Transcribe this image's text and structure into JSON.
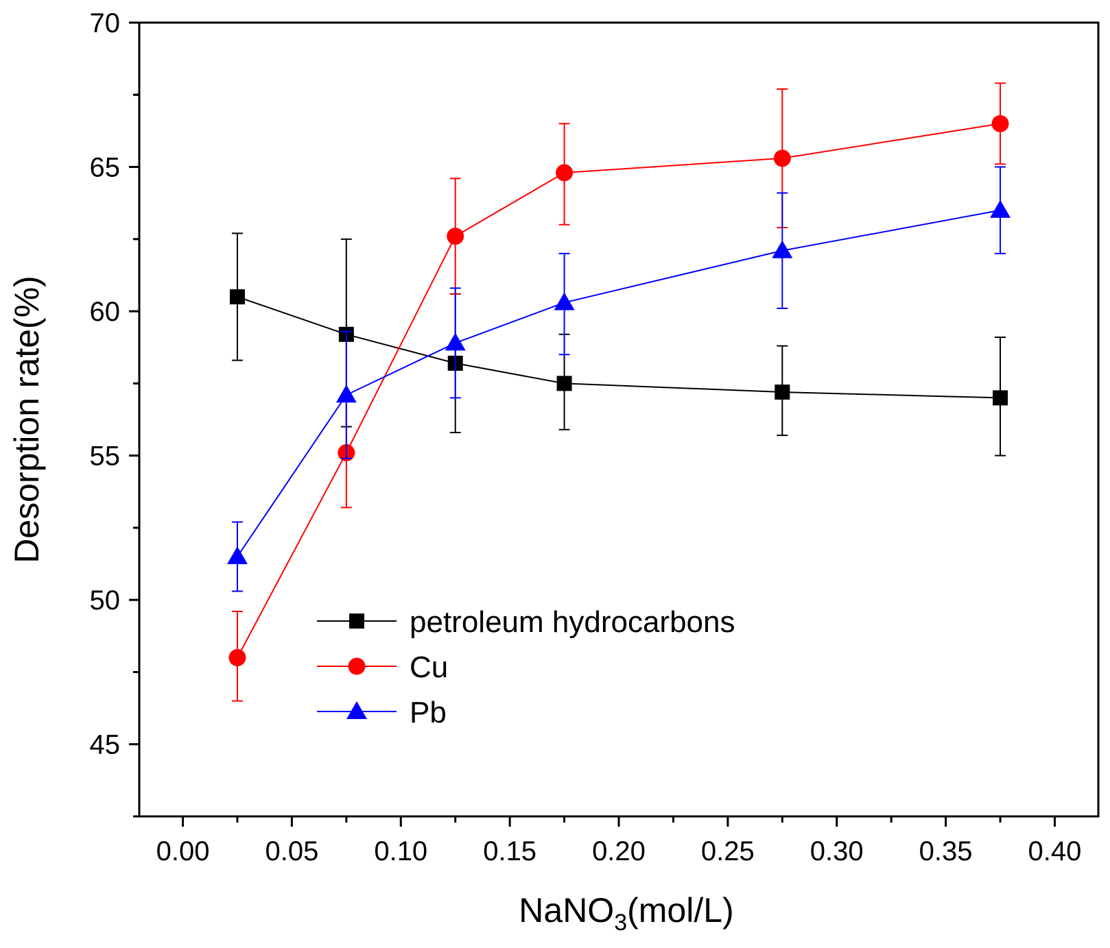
{
  "chart_data": {
    "type": "line",
    "xlabel": {
      "main": "NaNO",
      "sub": "3",
      "rest": "(mol/L)"
    },
    "ylabel": "Desorption rate(%)",
    "xlim": [
      -0.02,
      0.42
    ],
    "ylim": [
      42.5,
      70
    ],
    "x_ticks": [
      "0.00",
      "0.05",
      "0.10",
      "0.15",
      "0.20",
      "0.25",
      "0.30",
      "0.35",
      "0.40"
    ],
    "y_ticks": [
      "45",
      "50",
      "55",
      "60",
      "65",
      "70"
    ],
    "grid": false,
    "legend_position": "lower-center",
    "series": [
      {
        "name": "petroleum hydrocarbons",
        "color": "#000000",
        "marker": "square",
        "x": [
          0.025,
          0.075,
          0.125,
          0.175,
          0.275,
          0.375
        ],
        "y": [
          60.5,
          59.2,
          58.2,
          57.5,
          57.2,
          57.0
        ],
        "err_low": [
          58.3,
          56.0,
          55.8,
          55.9,
          55.7,
          55.0
        ],
        "err_high": [
          62.7,
          62.5,
          60.6,
          59.2,
          58.8,
          59.1
        ]
      },
      {
        "name": "Cu",
        "color": "#ff0000",
        "marker": "circle",
        "x": [
          0.025,
          0.075,
          0.125,
          0.175,
          0.275,
          0.375
        ],
        "y": [
          48.0,
          55.1,
          62.6,
          64.8,
          65.3,
          66.5
        ],
        "err_low": [
          46.5,
          53.2,
          60.6,
          63.0,
          62.9,
          65.1
        ],
        "err_high": [
          49.6,
          57.0,
          64.6,
          66.5,
          67.7,
          67.9
        ]
      },
      {
        "name": "Pb",
        "color": "#0000ff",
        "marker": "triangle",
        "x": [
          0.025,
          0.075,
          0.125,
          0.175,
          0.275,
          0.375
        ],
        "y": [
          51.5,
          57.1,
          58.9,
          60.3,
          62.1,
          63.5
        ],
        "err_low": [
          50.3,
          54.9,
          57.0,
          58.5,
          60.1,
          62.0
        ],
        "err_high": [
          52.7,
          59.3,
          60.8,
          62.0,
          64.1,
          65.0
        ]
      }
    ]
  }
}
